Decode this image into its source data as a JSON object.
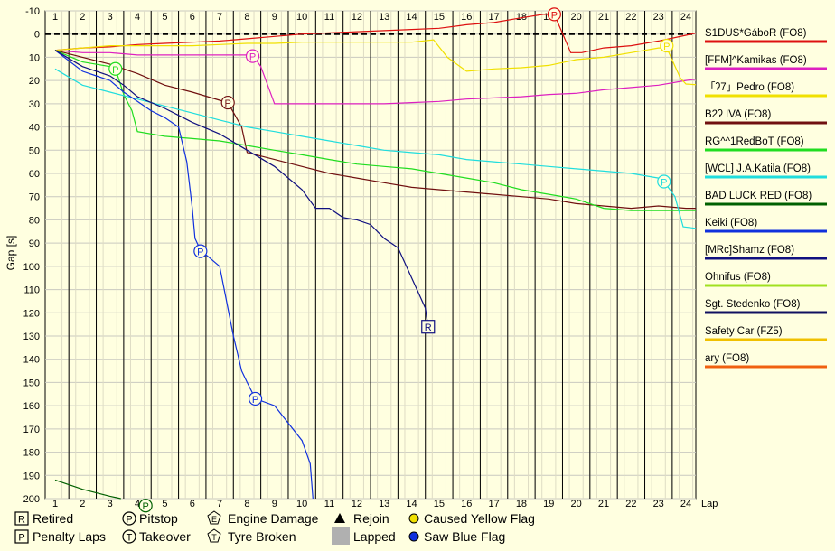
{
  "chart_data": {
    "type": "line",
    "ylabel": "Gap [s]",
    "xlabel": "Lap",
    "xlim": [
      0.5,
      24.6
    ],
    "ylim": [
      -10,
      200
    ],
    "x_ticks": [
      1,
      2,
      3,
      4,
      5,
      6,
      7,
      8,
      9,
      10,
      11,
      12,
      13,
      14,
      15,
      16,
      17,
      18,
      19,
      20,
      21,
      22,
      23,
      24
    ],
    "y_ticks": [
      -10,
      0,
      10,
      20,
      30,
      40,
      50,
      60,
      70,
      80,
      90,
      100,
      110,
      120,
      130,
      140,
      150,
      160,
      170,
      180,
      190,
      200
    ],
    "reference_line_y": 0,
    "grid": true,
    "legend_position": "right",
    "series": [
      {
        "name": "S1DUS*GáboR (FO8)",
        "color": "#dd1010",
        "points": [
          [
            1,
            7
          ],
          [
            1.5,
            6.5
          ],
          [
            2,
            6
          ],
          [
            3,
            5.5
          ],
          [
            4,
            4.5
          ],
          [
            5,
            4
          ],
          [
            6,
            3.5
          ],
          [
            7,
            3
          ],
          [
            8,
            2
          ],
          [
            9,
            1
          ],
          [
            10,
            0
          ],
          [
            11,
            -0.5
          ],
          [
            12,
            -1
          ],
          [
            13,
            -1.5
          ],
          [
            14,
            -2
          ],
          [
            15,
            -2.5
          ],
          [
            16,
            -4
          ],
          [
            17,
            -5
          ],
          [
            18,
            -7
          ],
          [
            18.8,
            -8.5
          ],
          [
            19.2,
            -8.5
          ],
          [
            19.8,
            8
          ],
          [
            20.2,
            8
          ],
          [
            21,
            6
          ],
          [
            22,
            5
          ],
          [
            23,
            3
          ],
          [
            24,
            0.5
          ],
          [
            24.4,
            -0.5
          ]
        ],
        "markers": [
          {
            "type": "pitstop",
            "x": 19.2,
            "y": -8.5
          }
        ]
      },
      {
        "name": "[FFM]^Kamikas (FO8)",
        "color": "#dd20c0",
        "points": [
          [
            1,
            7
          ],
          [
            2,
            8
          ],
          [
            3,
            8
          ],
          [
            4,
            9
          ],
          [
            5,
            9
          ],
          [
            6,
            9
          ],
          [
            7,
            9
          ],
          [
            8,
            9
          ],
          [
            8.2,
            9
          ],
          [
            8.5,
            14
          ],
          [
            9,
            30
          ],
          [
            10,
            30
          ],
          [
            11,
            30
          ],
          [
            12,
            30
          ],
          [
            13,
            30
          ],
          [
            14,
            29.5
          ],
          [
            15,
            29
          ],
          [
            16,
            28
          ],
          [
            17,
            27.5
          ],
          [
            18,
            27
          ],
          [
            19,
            26
          ],
          [
            20,
            25.5
          ],
          [
            21,
            24
          ],
          [
            22,
            23
          ],
          [
            23,
            22
          ],
          [
            24,
            20
          ],
          [
            24.6,
            19
          ]
        ],
        "markers": [
          {
            "type": "pitstop",
            "x": 8.2,
            "y": 9.5
          }
        ]
      },
      {
        "name": "「ʔ7」Pedro (FO8)",
        "color": "#f0e000",
        "points": [
          [
            1,
            7
          ],
          [
            2,
            6
          ],
          [
            3,
            5
          ],
          [
            4,
            5
          ],
          [
            5,
            5
          ],
          [
            6,
            5
          ],
          [
            7,
            4.5
          ],
          [
            8,
            4
          ],
          [
            9,
            4
          ],
          [
            10,
            3.5
          ],
          [
            11,
            3.5
          ],
          [
            12,
            3.5
          ],
          [
            13,
            3.5
          ],
          [
            14,
            3.5
          ],
          [
            14.8,
            2.5
          ],
          [
            15.3,
            10
          ],
          [
            16,
            16
          ],
          [
            17,
            15
          ],
          [
            18,
            14.5
          ],
          [
            19,
            13.5
          ],
          [
            20,
            11
          ],
          [
            21,
            10
          ],
          [
            22,
            8
          ],
          [
            23,
            6
          ],
          [
            23.3,
            6
          ],
          [
            23.8,
            19
          ],
          [
            24,
            21.5
          ],
          [
            24.6,
            22
          ]
        ],
        "markers": [
          {
            "type": "pitstop",
            "x": 23.3,
            "y": 5
          }
        ]
      },
      {
        "name": "B2ʔ IVA (FO8)",
        "color": "#701010",
        "points": [
          [
            1,
            7
          ],
          [
            2,
            10
          ],
          [
            3,
            13
          ],
          [
            4,
            17
          ],
          [
            5,
            22
          ],
          [
            6,
            25
          ],
          [
            7,
            28.5
          ],
          [
            7.3,
            29.5
          ],
          [
            7.8,
            40
          ],
          [
            8,
            51
          ],
          [
            9,
            54
          ],
          [
            10,
            57
          ],
          [
            11,
            60
          ],
          [
            12,
            62
          ],
          [
            13,
            64
          ],
          [
            14,
            66
          ],
          [
            15,
            67
          ],
          [
            16,
            68
          ],
          [
            17,
            69
          ],
          [
            18,
            70
          ],
          [
            19,
            71
          ],
          [
            20,
            73
          ],
          [
            21,
            74
          ],
          [
            22,
            75
          ],
          [
            23,
            74
          ],
          [
            24,
            75
          ],
          [
            24.6,
            75
          ]
        ],
        "markers": [
          {
            "type": "pitstop",
            "x": 7.3,
            "y": 29.5
          }
        ]
      },
      {
        "name": "RG^^1RedBoT (FO8)",
        "color": "#20dd20",
        "points": [
          [
            1,
            7
          ],
          [
            2,
            12
          ],
          [
            3,
            14
          ],
          [
            3.2,
            15
          ],
          [
            3.5,
            26
          ],
          [
            3.8,
            33
          ],
          [
            4,
            42
          ],
          [
            5,
            44
          ],
          [
            6,
            45
          ],
          [
            7,
            46
          ],
          [
            8,
            48
          ],
          [
            9,
            50
          ],
          [
            10,
            52
          ],
          [
            11,
            54
          ],
          [
            12,
            56
          ],
          [
            13,
            57
          ],
          [
            14,
            58
          ],
          [
            15,
            60
          ],
          [
            16,
            62
          ],
          [
            17,
            64
          ],
          [
            18,
            67
          ],
          [
            19,
            69
          ],
          [
            20,
            71
          ],
          [
            21,
            75
          ],
          [
            22,
            76
          ],
          [
            23,
            76
          ],
          [
            24,
            76
          ],
          [
            24.6,
            76
          ]
        ],
        "markers": [
          {
            "type": "pitstop",
            "x": 3.2,
            "y": 15
          }
        ]
      },
      {
        "name": "[WCL] J.A.Katila (FO8)",
        "color": "#20dddd",
        "points": [
          [
            1,
            15
          ],
          [
            2,
            22
          ],
          [
            3,
            25
          ],
          [
            4,
            28
          ],
          [
            5,
            31
          ],
          [
            6,
            34
          ],
          [
            7,
            37
          ],
          [
            8,
            40
          ],
          [
            9,
            42
          ],
          [
            10,
            44
          ],
          [
            11,
            46
          ],
          [
            12,
            48
          ],
          [
            13,
            50
          ],
          [
            14,
            51
          ],
          [
            15,
            52
          ],
          [
            16,
            54
          ],
          [
            17,
            55
          ],
          [
            18,
            56
          ],
          [
            19,
            57
          ],
          [
            20,
            58
          ],
          [
            21,
            59
          ],
          [
            22,
            60
          ],
          [
            23,
            62
          ],
          [
            23.2,
            63.5
          ],
          [
            23.6,
            70
          ],
          [
            23.9,
            83
          ],
          [
            24.6,
            84
          ]
        ],
        "markers": [
          {
            "type": "pitstop",
            "x": 23.2,
            "y": 63.5
          }
        ]
      },
      {
        "name": "BAD LUCK RED (FO8)",
        "color": "#006000",
        "points": [
          [
            1,
            192
          ],
          [
            1.5,
            194
          ],
          [
            2,
            196
          ],
          [
            3,
            199
          ],
          [
            3.4,
            200
          ]
        ],
        "markers": [
          {
            "type": "pitstop",
            "x": 4.3,
            "y": 203
          }
        ]
      },
      {
        "name": "Keiki (FO8)",
        "color": "#1030dd",
        "points": [
          [
            1,
            7
          ],
          [
            2,
            16
          ],
          [
            2.5,
            18
          ],
          [
            3,
            20
          ],
          [
            3.5,
            25
          ],
          [
            4,
            29
          ],
          [
            4.5,
            33
          ],
          [
            5,
            36
          ],
          [
            5.5,
            40
          ],
          [
            5.8,
            55
          ],
          [
            6,
            75
          ],
          [
            6.1,
            88
          ],
          [
            6.3,
            93
          ],
          [
            7,
            100
          ],
          [
            7.5,
            130
          ],
          [
            7.8,
            145
          ],
          [
            8,
            150
          ],
          [
            8.3,
            157
          ],
          [
            9,
            160
          ],
          [
            10,
            175
          ],
          [
            10.3,
            185
          ],
          [
            10.4,
            200
          ]
        ],
        "markers": [
          {
            "type": "pitstop",
            "x": 6.3,
            "y": 93.5
          },
          {
            "type": "pitstop",
            "x": 8.3,
            "y": 157
          }
        ]
      },
      {
        "name": "[MRc]Shamz (FO8)",
        "color": "#101080",
        "points": [
          [
            1,
            7
          ],
          [
            2,
            14
          ],
          [
            3,
            18
          ],
          [
            3.5,
            22
          ],
          [
            4,
            27
          ],
          [
            5,
            32
          ],
          [
            5.5,
            35
          ],
          [
            6,
            38
          ],
          [
            7,
            43
          ],
          [
            8,
            50
          ],
          [
            9,
            57
          ],
          [
            10,
            67
          ],
          [
            10.5,
            75
          ],
          [
            11,
            75
          ],
          [
            11.5,
            79
          ],
          [
            12,
            80
          ],
          [
            12.5,
            82
          ],
          [
            13,
            88
          ],
          [
            13.5,
            92
          ],
          [
            14,
            105
          ],
          [
            14.5,
            118
          ],
          [
            14.6,
            126
          ]
        ],
        "markers": [
          {
            "type": "retired",
            "x": 14.6,
            "y": 126
          }
        ]
      },
      {
        "name": "Ohnifus (FO8)",
        "color": "#a0e020",
        "points": [],
        "markers": []
      },
      {
        "name": "Sgt. Stedenko (FO8)",
        "color": "#101060",
        "points": [],
        "markers": []
      },
      {
        "name": "Safety Car (FZ5)",
        "color": "#f0c000",
        "points": [],
        "markers": []
      },
      {
        "name": "ary (FO8)",
        "color": "#f06010",
        "points": [],
        "markers": []
      }
    ]
  },
  "legend_bottom": {
    "retired": {
      "symbol": "R",
      "label": "Retired"
    },
    "penalty": {
      "symbol": "P",
      "label": "Penalty Laps"
    },
    "pitstop": {
      "symbol": "P",
      "label": "Pitstop"
    },
    "takeover": {
      "symbol": "T",
      "label": "Takeover"
    },
    "engine": {
      "symbol": "E",
      "label": "Engine Damage"
    },
    "tyre": {
      "symbol": "T",
      "label": "Tyre Broken"
    },
    "rejoin": {
      "label": "Rejoin"
    },
    "lapped": {
      "label": "Lapped"
    },
    "yellow": {
      "label": "Caused Yellow Flag"
    },
    "blue": {
      "label": "Saw Blue Flag"
    }
  }
}
